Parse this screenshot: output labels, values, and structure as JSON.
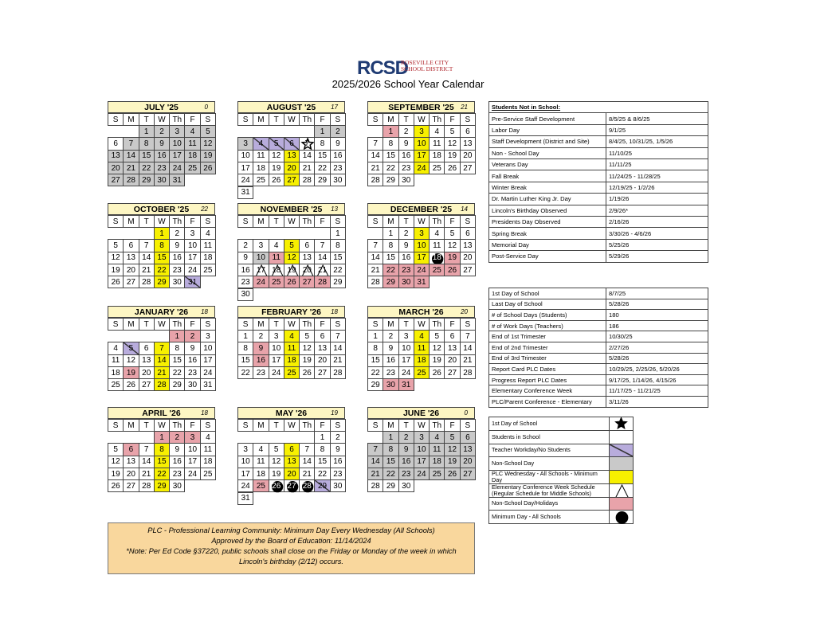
{
  "header": {
    "logo": "RCSD",
    "district": "ROSEVILLE CITY SCHOOL DISTRICT",
    "title": "2025/2026 School Year Calendar"
  },
  "weekdays": [
    "S",
    "M",
    "T",
    "W",
    "Th",
    "F",
    "S"
  ],
  "months": [
    {
      "name": "JULY '25",
      "count": 0,
      "weeks": [
        [
          null,
          null,
          1,
          2,
          3,
          4,
          5
        ],
        [
          6,
          7,
          8,
          9,
          10,
          11,
          12
        ],
        [
          13,
          14,
          15,
          16,
          17,
          18,
          19
        ],
        [
          20,
          21,
          22,
          23,
          24,
          25,
          26
        ],
        [
          27,
          28,
          29,
          30,
          31,
          null,
          null
        ]
      ],
      "marks": {
        "gray": [
          1,
          2,
          3,
          4,
          5,
          7,
          8,
          9,
          10,
          11,
          12,
          13,
          14,
          15,
          16,
          17,
          18,
          19,
          20,
          21,
          22,
          23,
          24,
          25,
          26,
          27,
          28,
          29,
          30,
          31
        ]
      }
    },
    {
      "name": "AUGUST '25",
      "count": 17,
      "weeks": [
        [
          null,
          null,
          null,
          null,
          null,
          1,
          2
        ],
        [
          3,
          4,
          5,
          6,
          7,
          8,
          9
        ],
        [
          10,
          11,
          12,
          13,
          14,
          15,
          16
        ],
        [
          17,
          18,
          19,
          20,
          21,
          22,
          23
        ],
        [
          24,
          25,
          26,
          27,
          28,
          29,
          30
        ],
        [
          31,
          null,
          null,
          null,
          null,
          null,
          null
        ]
      ],
      "marks": {
        "gray": [
          1,
          2,
          3
        ],
        "purple": [
          4,
          5,
          6
        ],
        "star": [
          7
        ],
        "yellow": [
          13,
          20,
          27
        ]
      }
    },
    {
      "name": "SEPTEMBER '25",
      "count": 21,
      "weeks": [
        [
          null,
          1,
          2,
          3,
          4,
          5,
          6
        ],
        [
          7,
          8,
          9,
          10,
          11,
          12,
          13
        ],
        [
          14,
          15,
          16,
          17,
          18,
          19,
          20
        ],
        [
          21,
          22,
          23,
          24,
          25,
          26,
          27
        ],
        [
          28,
          29,
          30,
          null,
          null,
          null,
          null
        ]
      ],
      "marks": {
        "pink": [
          1
        ],
        "yellow": [
          3,
          10,
          17,
          24
        ]
      }
    },
    {
      "name": "OCTOBER '25",
      "count": 22,
      "weeks": [
        [
          null,
          null,
          null,
          1,
          2,
          3,
          4
        ],
        [
          5,
          6,
          7,
          8,
          9,
          10,
          11
        ],
        [
          12,
          13,
          14,
          15,
          16,
          17,
          18
        ],
        [
          19,
          20,
          21,
          22,
          23,
          24,
          25
        ],
        [
          26,
          27,
          28,
          29,
          30,
          31,
          null
        ]
      ],
      "marks": {
        "yellow": [
          1,
          8,
          15,
          22,
          29
        ],
        "purple": [
          31
        ]
      }
    },
    {
      "name": "NOVEMBER '25",
      "count": 13,
      "weeks": [
        [
          null,
          null,
          null,
          null,
          null,
          null,
          1
        ],
        [
          2,
          3,
          4,
          5,
          6,
          7,
          8
        ],
        [
          9,
          10,
          11,
          12,
          13,
          14,
          15
        ],
        [
          16,
          17,
          18,
          19,
          20,
          21,
          22
        ],
        [
          23,
          24,
          25,
          26,
          27,
          28,
          29
        ],
        [
          30,
          null,
          null,
          null,
          null,
          null,
          null
        ]
      ],
      "marks": {
        "yellow": [
          5,
          12
        ],
        "gray": [
          10
        ],
        "pink": [
          11,
          24,
          25,
          26,
          27,
          28
        ],
        "triangle": [
          17,
          18,
          19,
          20,
          21
        ]
      }
    },
    {
      "name": "DECEMBER '25",
      "count": 14,
      "weeks": [
        [
          null,
          1,
          2,
          3,
          4,
          5,
          6
        ],
        [
          7,
          8,
          9,
          10,
          11,
          12,
          13
        ],
        [
          14,
          15,
          16,
          17,
          18,
          19,
          20
        ],
        [
          21,
          22,
          23,
          24,
          25,
          26,
          27
        ],
        [
          28,
          29,
          30,
          31,
          null,
          null,
          null
        ]
      ],
      "marks": {
        "yellow": [
          3,
          10,
          17
        ],
        "circle": [
          18
        ],
        "pink": [
          19,
          22,
          23,
          24,
          25,
          26,
          29,
          30,
          31
        ]
      }
    },
    {
      "name": "JANUARY '26",
      "count": 18,
      "weeks": [
        [
          null,
          null,
          null,
          null,
          1,
          2,
          3
        ],
        [
          4,
          5,
          6,
          7,
          8,
          9,
          10
        ],
        [
          11,
          12,
          13,
          14,
          15,
          16,
          17
        ],
        [
          18,
          19,
          20,
          21,
          22,
          23,
          24
        ],
        [
          25,
          26,
          27,
          28,
          29,
          30,
          31
        ]
      ],
      "marks": {
        "pink": [
          1,
          2,
          19
        ],
        "purple": [
          5
        ],
        "yellow": [
          7,
          14,
          21,
          28
        ]
      }
    },
    {
      "name": "FEBRUARY '26",
      "count": 18,
      "weeks": [
        [
          1,
          2,
          3,
          4,
          5,
          6,
          7
        ],
        [
          8,
          9,
          10,
          11,
          12,
          13,
          14
        ],
        [
          15,
          16,
          17,
          18,
          19,
          20,
          21
        ],
        [
          22,
          23,
          24,
          25,
          26,
          27,
          28
        ]
      ],
      "marks": {
        "yellow": [
          4,
          11,
          18,
          25
        ],
        "pink": [
          9,
          16
        ]
      }
    },
    {
      "name": "MARCH '26",
      "count": 20,
      "weeks": [
        [
          1,
          2,
          3,
          4,
          5,
          6,
          7
        ],
        [
          8,
          9,
          10,
          11,
          12,
          13,
          14
        ],
        [
          15,
          16,
          17,
          18,
          19,
          20,
          21
        ],
        [
          22,
          23,
          24,
          25,
          26,
          27,
          28
        ],
        [
          29,
          30,
          31,
          null,
          null,
          null,
          null
        ]
      ],
      "marks": {
        "yellow": [
          4,
          11,
          18,
          25
        ],
        "pink": [
          30,
          31
        ]
      }
    },
    {
      "name": "APRIL '26",
      "count": 18,
      "weeks": [
        [
          null,
          null,
          null,
          1,
          2,
          3,
          4
        ],
        [
          5,
          6,
          7,
          8,
          9,
          10,
          11
        ],
        [
          12,
          13,
          14,
          15,
          16,
          17,
          18
        ],
        [
          19,
          20,
          21,
          22,
          23,
          24,
          25
        ],
        [
          26,
          27,
          28,
          29,
          30,
          null,
          null
        ]
      ],
      "marks": {
        "pink": [
          1,
          2,
          3,
          6
        ],
        "yellow": [
          8,
          15,
          22,
          29
        ]
      }
    },
    {
      "name": "MAY '26",
      "count": 19,
      "weeks": [
        [
          null,
          null,
          null,
          null,
          null,
          1,
          2
        ],
        [
          3,
          4,
          5,
          6,
          7,
          8,
          9
        ],
        [
          10,
          11,
          12,
          13,
          14,
          15,
          16
        ],
        [
          17,
          18,
          19,
          20,
          21,
          22,
          23
        ],
        [
          24,
          25,
          26,
          27,
          28,
          29,
          30
        ],
        [
          31,
          null,
          null,
          null,
          null,
          null,
          null
        ]
      ],
      "marks": {
        "yellow": [
          6,
          13,
          20
        ],
        "pink": [
          25
        ],
        "circle": [
          26,
          27,
          28
        ],
        "purple": [
          29
        ]
      }
    },
    {
      "name": "JUNE '26",
      "count": 0,
      "weeks": [
        [
          null,
          1,
          2,
          3,
          4,
          5,
          6
        ],
        [
          7,
          8,
          9,
          10,
          11,
          12,
          13
        ],
        [
          14,
          15,
          16,
          17,
          18,
          19,
          20
        ],
        [
          21,
          22,
          23,
          24,
          25,
          26,
          27
        ],
        [
          28,
          29,
          30,
          null,
          null,
          null,
          null
        ]
      ],
      "marks": {
        "gray": [
          1,
          2,
          3,
          4,
          5,
          6,
          7,
          8,
          9,
          10,
          11,
          12,
          13,
          14,
          15,
          16,
          17,
          18,
          19,
          20,
          21,
          22,
          23,
          24,
          25,
          26,
          27
        ]
      }
    }
  ],
  "closures": {
    "title": "Students Not in School:",
    "rows": [
      [
        "Pre-Service Staff Development",
        "8/5/25 & 8/6/25"
      ],
      [
        "Labor Day",
        "9/1/25"
      ],
      [
        "Staff Development (District and Site)",
        "8/4/25, 10/31/25, 1/5/26"
      ],
      [
        "Non - School Day",
        "11/10/25"
      ],
      [
        "Veterans Day",
        "11/11/25"
      ],
      [
        "Fall Break",
        "11/24/25 - 11/28/25"
      ],
      [
        "Winter Break",
        "12/19/25 - 1/2/26"
      ],
      [
        "Dr. Martin Luther King Jr. Day",
        "1/19/26"
      ],
      [
        "Lincoln's Birthday Observed",
        "2/9/26*"
      ],
      [
        "Presidents Day Observed",
        "2/16/26"
      ],
      [
        "Spring Break",
        "3/30/26 - 4/6/26"
      ],
      [
        "Memorial Day",
        "5/25/26"
      ],
      [
        "Post-Service Day",
        "5/29/26"
      ]
    ]
  },
  "facts": {
    "rows": [
      [
        "1st Day of School",
        "8/7/25"
      ],
      [
        "Last Day of School",
        "5/28/26"
      ],
      [
        "# of School Days (Students)",
        "180"
      ],
      [
        "# of Work Days (Teachers)",
        "186"
      ],
      [
        "End of 1st Trimester",
        "10/30/25"
      ],
      [
        "End of 2nd Trimester",
        "2/27/26"
      ],
      [
        "End of 3rd Trimester",
        "5/28/26"
      ],
      [
        "Report Card PLC Dates",
        "10/29/25, 2/25/26, 5/20/26"
      ],
      [
        "Progress Report PLC Dates",
        "9/17/25, 1/14/26, 4/15/26"
      ],
      [
        "Elementary Conference Week",
        "11/17/25 - 11/21/25"
      ],
      [
        "PLC/Parent Conference - Elementary",
        "3/11/26"
      ]
    ]
  },
  "legend": [
    {
      "label": "1st Day of School",
      "style": "star"
    },
    {
      "label": "Students in School",
      "style": "white"
    },
    {
      "label": "Teacher Workday/No Students",
      "style": "purple"
    },
    {
      "label": "Non-School Day",
      "style": "gray"
    },
    {
      "label": "PLC Wednesday - All Schools - Minimum Day",
      "style": "yellow"
    },
    {
      "label": "Elementary Conference Week Schedule (Regular Schedule for Middle Schools)",
      "style": "triangle"
    },
    {
      "label": "Non-School Day/Holidays",
      "style": "pink"
    },
    {
      "label": "Minimum Day - All Schools",
      "style": "circle"
    }
  ],
  "note": [
    "PLC - Professional Learning Community: Minimum Day Every Wednesday (All Schools)",
    "Approved by the Board of Education: 11/14/2024",
    "*Note: Per Ed Code §37220, public schools shall close on the Friday or Monday of the week in which Lincoln's birthday (2/12) occurs."
  ]
}
